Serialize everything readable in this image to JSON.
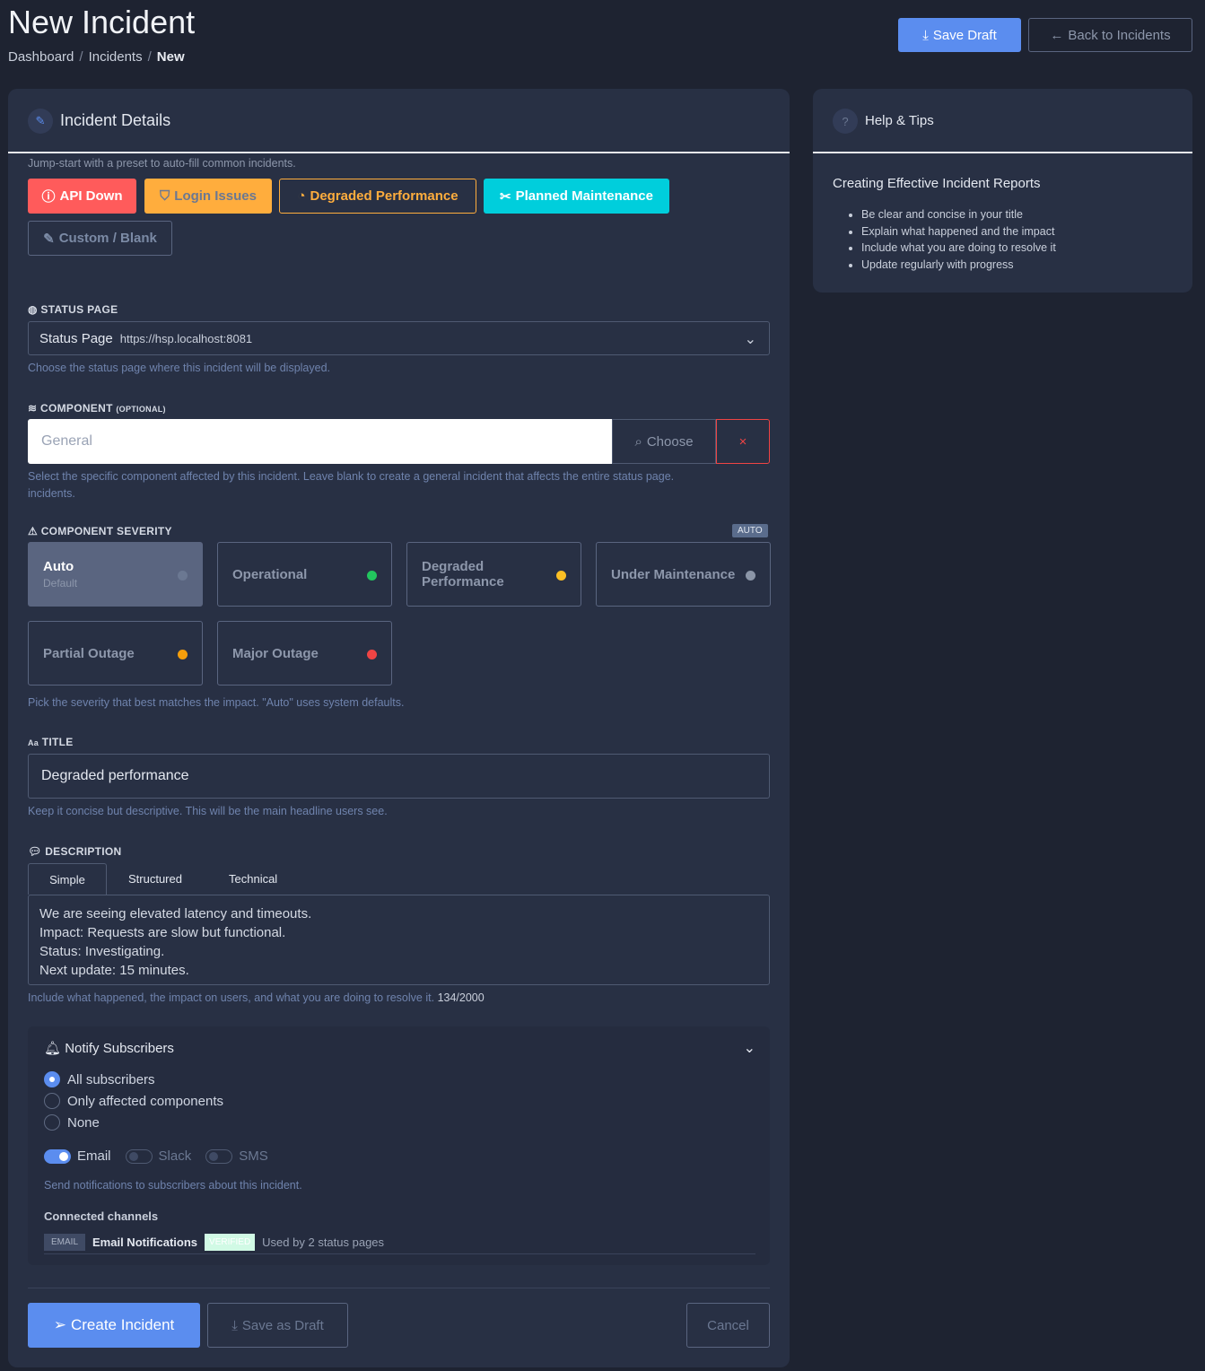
{
  "header": {
    "title": "New Incident",
    "breadcrumb": [
      "Dashboard",
      "Incidents",
      "New"
    ],
    "save_draft": "Save Draft",
    "back": "Back to Incidents"
  },
  "details": {
    "title": "Incident Details",
    "preset_hint": "Jump-start with a preset to auto-fill common incidents.",
    "presets": [
      {
        "label": "API Down",
        "color": "#ff5b5b"
      },
      {
        "label": "Login Issues",
        "color": "#ffad3d"
      },
      {
        "label": "Degraded Performance",
        "color": "#ffad3d"
      },
      {
        "label": "Planned Maintenance",
        "color": "#00cedc"
      },
      {
        "label": "Custom / Blank",
        "color": "#6b7892"
      }
    ],
    "status_page": {
      "label": "STATUS PAGE",
      "name": "Status Page",
      "url": "https://hsp.localhost:8081",
      "hint": "Choose the status page where this incident will be displayed."
    },
    "component": {
      "label": "COMPONENT",
      "optional": "(OPTIONAL)",
      "placeholder": "General",
      "choose": "Choose",
      "clear": "×",
      "hint": "Select the specific component affected by this incident. Leave blank to create a general incident that affects the entire status page.",
      "hint2": "incidents."
    },
    "severity": {
      "label": "COMPONENT SEVERITY",
      "badge": "AUTO",
      "hint": "Pick the severity that best matches the impact. \"Auto\" uses system defaults.",
      "options": [
        {
          "label": "Auto",
          "sub": "Default",
          "color": "#6b7892",
          "selected": true
        },
        {
          "label": "Operational",
          "color": "#22c55e"
        },
        {
          "label": "Degraded Performance",
          "color": "#fbbf24"
        },
        {
          "label": "Under Maintenance",
          "color": "#8b95a7"
        },
        {
          "label": "Partial Outage",
          "color": "#f59e0b"
        },
        {
          "label": "Major Outage",
          "color": "#ef4444"
        }
      ]
    },
    "title_field": {
      "label": "TITLE",
      "icon_text": "Aa",
      "value": "Degraded performance",
      "hint": "Keep it concise but descriptive. This will be the main headline users see."
    },
    "description": {
      "label": "DESCRIPTION",
      "tabs": [
        "Simple",
        "Structured",
        "Technical"
      ],
      "active_tab": "Simple",
      "lines": [
        "We are seeing elevated latency and timeouts.",
        "Impact: Requests are slow but functional.",
        "Status: Investigating.",
        "Next update: 15 minutes."
      ],
      "hint": "Include what happened, the impact on users, and what you are doing to resolve it.",
      "count": "134/2000"
    },
    "notify": {
      "title": "Notify Subscribers",
      "radios": [
        "All subscribers",
        "Only affected components",
        "None"
      ],
      "selected": "All subscribers",
      "channels": [
        {
          "label": "Email",
          "on": true
        },
        {
          "label": "Slack",
          "on": false
        },
        {
          "label": "SMS",
          "on": false
        }
      ],
      "hint": "Send notifications to subscribers about this incident.",
      "connected_label": "Connected channels",
      "connected": {
        "type": "EMAIL",
        "name": "Email Notifications",
        "badge": "VERIFIED",
        "usage": "Used by 2 status pages"
      }
    },
    "actions": {
      "create": "Create Incident",
      "save_draft": "Save as Draft",
      "cancel": "Cancel"
    }
  },
  "help": {
    "title": "Help & Tips",
    "heading": "Creating Effective Incident Reports",
    "tips": [
      "Be clear and concise in your title",
      "Explain what happened and the impact",
      "Include what you are doing to resolve it",
      "Update regularly with progress"
    ]
  }
}
